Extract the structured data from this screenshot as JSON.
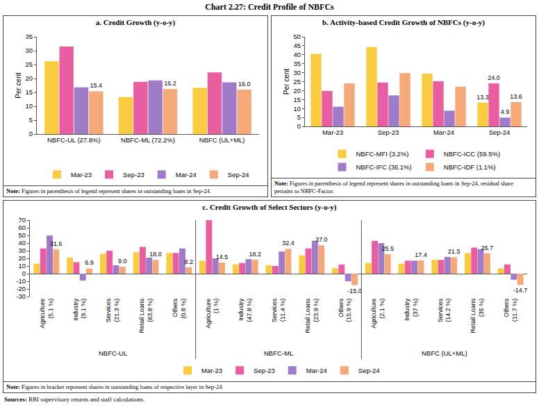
{
  "title": "Chart 2.27: Credit Profile of NBFCs",
  "sources": {
    "label": "Sources:",
    "text": "RBI supervisory returns and staff calculations."
  },
  "chart_data": [
    {
      "type": "bar",
      "title": "a. Credit Growth (y-o-y)",
      "y_label": "Per cent",
      "categories": [
        "NBFC-UL (27.8%)",
        "NBFC-ML (72.2%)",
        "NBFC (UL+ML)"
      ],
      "series": [
        {
          "name": "Mar-23",
          "color": "#F9CB40",
          "values": [
            26.2,
            13.3,
            16.6
          ]
        },
        {
          "name": "Sep-23",
          "color": "#E85EA0",
          "values": [
            31.5,
            18.8,
            22.2
          ]
        },
        {
          "name": "Mar-24",
          "color": "#A07CC8",
          "values": [
            16.8,
            19.3,
            18.6
          ]
        },
        {
          "name": "Sep-24",
          "color": "#F5A878",
          "values": [
            15.4,
            16.2,
            16.0
          ],
          "value_labels": [
            "15.4",
            "16.2",
            "16.0"
          ]
        }
      ],
      "ylim": [
        0,
        35
      ],
      "yticks": [
        0,
        5,
        10,
        15,
        20,
        25,
        30,
        35
      ],
      "grid": false,
      "legend": "bottom",
      "data_labels": true,
      "note": {
        "label": "Note:",
        "text": "Figures in parenthesis of legend represent shares in outstanding loans in Sep-24."
      }
    },
    {
      "type": "bar",
      "title": "b. Activity-based Credit Growth of NBFCs (y-o-y)",
      "y_label": "Per cent",
      "categories": [
        "Mar-23",
        "Sep-23",
        "Mar-24",
        "Sep-24"
      ],
      "series": [
        {
          "name": "NBFC-MFI (3.2%)",
          "color": "#F9CB40",
          "values": [
            40.5,
            44.3,
            29.5,
            13.3
          ],
          "value_labels": [
            null,
            null,
            null,
            "13.3"
          ]
        },
        {
          "name": "NBFC-ICC (59.5%)",
          "color": "#E85EA0",
          "values": [
            19.8,
            24.5,
            25.2,
            24.0
          ],
          "value_labels": [
            null,
            null,
            null,
            "24.0"
          ]
        },
        {
          "name": "NBFC-IFC (36.1%)",
          "color": "#A07CC8",
          "values": [
            11.0,
            17.3,
            8.8,
            4.9
          ],
          "value_labels": [
            null,
            null,
            null,
            "4.9"
          ]
        },
        {
          "name": "NBFC-IDF (1.1%)",
          "color": "#F5A878",
          "values": [
            24.0,
            29.7,
            22.2,
            13.6
          ],
          "value_labels": [
            null,
            null,
            null,
            "13.6"
          ]
        }
      ],
      "ylim": [
        0,
        50
      ],
      "yticks": [
        0,
        5,
        10,
        15,
        20,
        25,
        30,
        35,
        40,
        45,
        50
      ],
      "grid": false,
      "legend": "bottom",
      "data_labels": true,
      "note": {
        "label": "Note:",
        "text": "Figures in parenthesis of legend represent shares in outstanding loans in Sep-24, residual share pertains to NBFC-Factor."
      }
    },
    {
      "type": "bar",
      "title": "c. Credit Growth of Select Sectors (y-o-y)",
      "categories": [
        "Agriculture (5.1 %)",
        "Industry (9.1 %)",
        "Services (21.3 %)",
        "Retail Loans (63.8 %)",
        "Others (0.8 %)",
        "Agriculture (1 %)",
        "Industry (47.8 %)",
        "Services (11.4 %)",
        "Retail Loans (23.9 %)",
        "Others (15.9 %)",
        "Agriculture (2.1 %)",
        "Industry (37 %)",
        "Services (14.2 %)",
        "Retail Loans (35 %)",
        "Others (11.7 %)"
      ],
      "group_labels": [
        "NBFC-UL",
        "NBFC-ML",
        "NBFC (UL+ML)"
      ],
      "series": [
        {
          "name": "Mar-23",
          "color": "#F9CB40",
          "values": [
            13,
            21,
            26,
            28,
            27,
            17,
            12,
            11,
            24,
            7,
            14,
            13,
            18,
            27,
            7
          ]
        },
        {
          "name": "Sep-23",
          "color": "#E85EA0",
          "values": [
            33,
            15,
            30,
            35,
            27,
            70,
            14,
            10,
            33,
            12,
            43,
            17,
            18,
            34,
            12
          ]
        },
        {
          "name": "Mar-24",
          "color": "#A07CC8",
          "values": [
            50,
            -9,
            11,
            21,
            33,
            20,
            19,
            29,
            43,
            -10,
            40,
            17,
            22,
            32,
            -8
          ]
        },
        {
          "name": "Sep-24",
          "color": "#F5A878",
          "values": [
            31.6,
            6.9,
            9.0,
            18.0,
            8.2,
            14.5,
            18.2,
            32.4,
            37.0,
            -15.0,
            25.5,
            17.4,
            21.5,
            26.7,
            -14.7
          ],
          "value_labels": [
            "31.6",
            "6.9",
            "9.0",
            "18.0",
            "8.2",
            "14.5",
            "18.2",
            "32.4",
            "37.0",
            "-15.0",
            "25.5",
            "17.4",
            "21.5",
            "26.7",
            "-14.7"
          ]
        }
      ],
      "ylim": [
        -30,
        70
      ],
      "yticks": [
        -30,
        -20,
        -10,
        0,
        10,
        20,
        30,
        40,
        50,
        60,
        70
      ],
      "grid": false,
      "legend": "bottom",
      "data_labels": true,
      "note": {
        "label": "Note:",
        "text": "Figures in bracket represent shares in outstanding loans of respective layer in Sep-24."
      }
    }
  ]
}
